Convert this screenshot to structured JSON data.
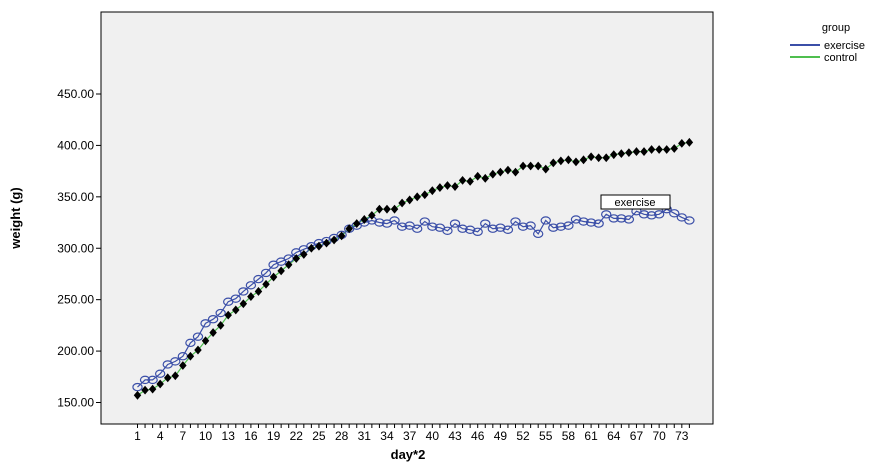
{
  "chart_data": {
    "type": "line",
    "xlabel": "day*2",
    "ylabel": "weight (g)",
    "ylim": [
      140,
      465
    ],
    "y_ticks": [
      "150.00",
      "200.00",
      "250.00",
      "300.00",
      "350.00",
      "400.00",
      "450.00"
    ],
    "x_ticks": [
      "1",
      "4",
      "7",
      "10",
      "13",
      "16",
      "19",
      "22",
      "25",
      "28",
      "31",
      "34",
      "37",
      "40",
      "43",
      "46",
      "49",
      "52",
      "55",
      "58",
      "61",
      "64",
      "67",
      "70",
      "73"
    ],
    "x": [
      1,
      2,
      3,
      4,
      5,
      6,
      7,
      8,
      9,
      10,
      11,
      12,
      13,
      14,
      15,
      16,
      17,
      18,
      19,
      20,
      21,
      22,
      23,
      24,
      25,
      26,
      27,
      28,
      29,
      30,
      31,
      32,
      33,
      34,
      35,
      36,
      37,
      38,
      39,
      40,
      41,
      42,
      43,
      44,
      45,
      46,
      47,
      48,
      49,
      50,
      51,
      52,
      53,
      54,
      55,
      56,
      57,
      58,
      59,
      60,
      61,
      62,
      63,
      64,
      65,
      66,
      67,
      68,
      69,
      70,
      71,
      72,
      73,
      74
    ],
    "grid": false,
    "legend": {
      "title": "group",
      "position": "top-right"
    },
    "annotation": "exercise",
    "series": [
      {
        "name": "exercise",
        "color": "#3b4fa8",
        "marker": "open-circle",
        "values": [
          165,
          172,
          172,
          178,
          187,
          190,
          195,
          208,
          214,
          227,
          231,
          237,
          248,
          251,
          258,
          264,
          270,
          276,
          284,
          287,
          290,
          296,
          299,
          302,
          305,
          307,
          310,
          313,
          319,
          322,
          325,
          327,
          325,
          324,
          327,
          321,
          322,
          319,
          326,
          321,
          320,
          317,
          324,
          319,
          318,
          316,
          324,
          319,
          320,
          318,
          326,
          321,
          322,
          314,
          327,
          320,
          321,
          322,
          328,
          326,
          325,
          324,
          333,
          329,
          329,
          328,
          336,
          333,
          332,
          333,
          338,
          334,
          330,
          327
        ]
      },
      {
        "name": "control",
        "color": "#4fbf4f",
        "marker": "filled-diamond",
        "values": [
          157,
          162,
          163,
          168,
          174,
          176,
          186,
          195,
          201,
          210,
          218,
          225,
          235,
          240,
          246,
          253,
          258,
          265,
          272,
          278,
          284,
          290,
          294,
          300,
          302,
          305,
          308,
          312,
          319,
          324,
          328,
          332,
          338,
          338,
          338,
          344,
          347,
          350,
          352,
          356,
          359,
          361,
          360,
          366,
          365,
          370,
          368,
          372,
          374,
          376,
          374,
          380,
          380,
          380,
          377,
          383,
          385,
          386,
          384,
          386,
          389,
          388,
          388,
          391,
          392,
          393,
          394,
          394,
          396,
          396,
          396,
          397,
          402,
          403
        ]
      }
    ]
  }
}
